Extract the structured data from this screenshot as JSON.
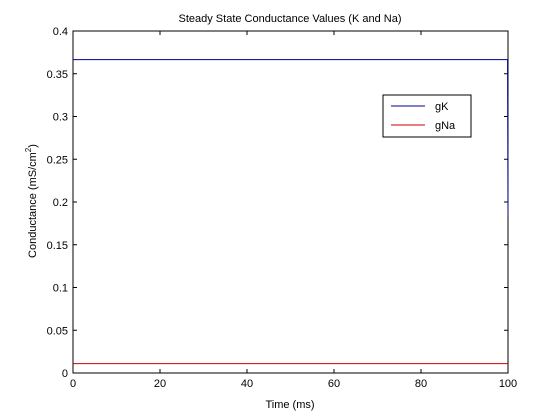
{
  "chart_data": {
    "type": "line",
    "title": "Steady State Conductance Values (K and Na)",
    "xlabel": "Time (ms)",
    "ylabel": "Conductance (mS/cm",
    "ylabel_sup": "2",
    "ylabel_end": ")",
    "xlim": [
      0,
      100
    ],
    "ylim": [
      0,
      0.4
    ],
    "xticks": [
      "0",
      "20",
      "40",
      "60",
      "80",
      "100"
    ],
    "xtick_values": [
      0,
      20,
      40,
      60,
      80,
      100
    ],
    "yticks": [
      "0",
      "0.05",
      "0.1",
      "0.15",
      "0.2",
      "0.25",
      "0.3",
      "0.35",
      "0.4"
    ],
    "ytick_values": [
      0,
      0.05,
      0.1,
      0.15,
      0.2,
      0.25,
      0.3,
      0.35,
      0.4
    ],
    "grid": false,
    "legend_position": "top-right",
    "series": [
      {
        "name": "gK",
        "color": "#00008b",
        "x": [
          0,
          99.9,
          100
        ],
        "y": [
          0.3665,
          0.3665,
          0.183
        ]
      },
      {
        "name": "gNa",
        "color": "#cc0000",
        "x": [
          0,
          100
        ],
        "y": [
          0.011,
          0.011
        ]
      }
    ]
  }
}
